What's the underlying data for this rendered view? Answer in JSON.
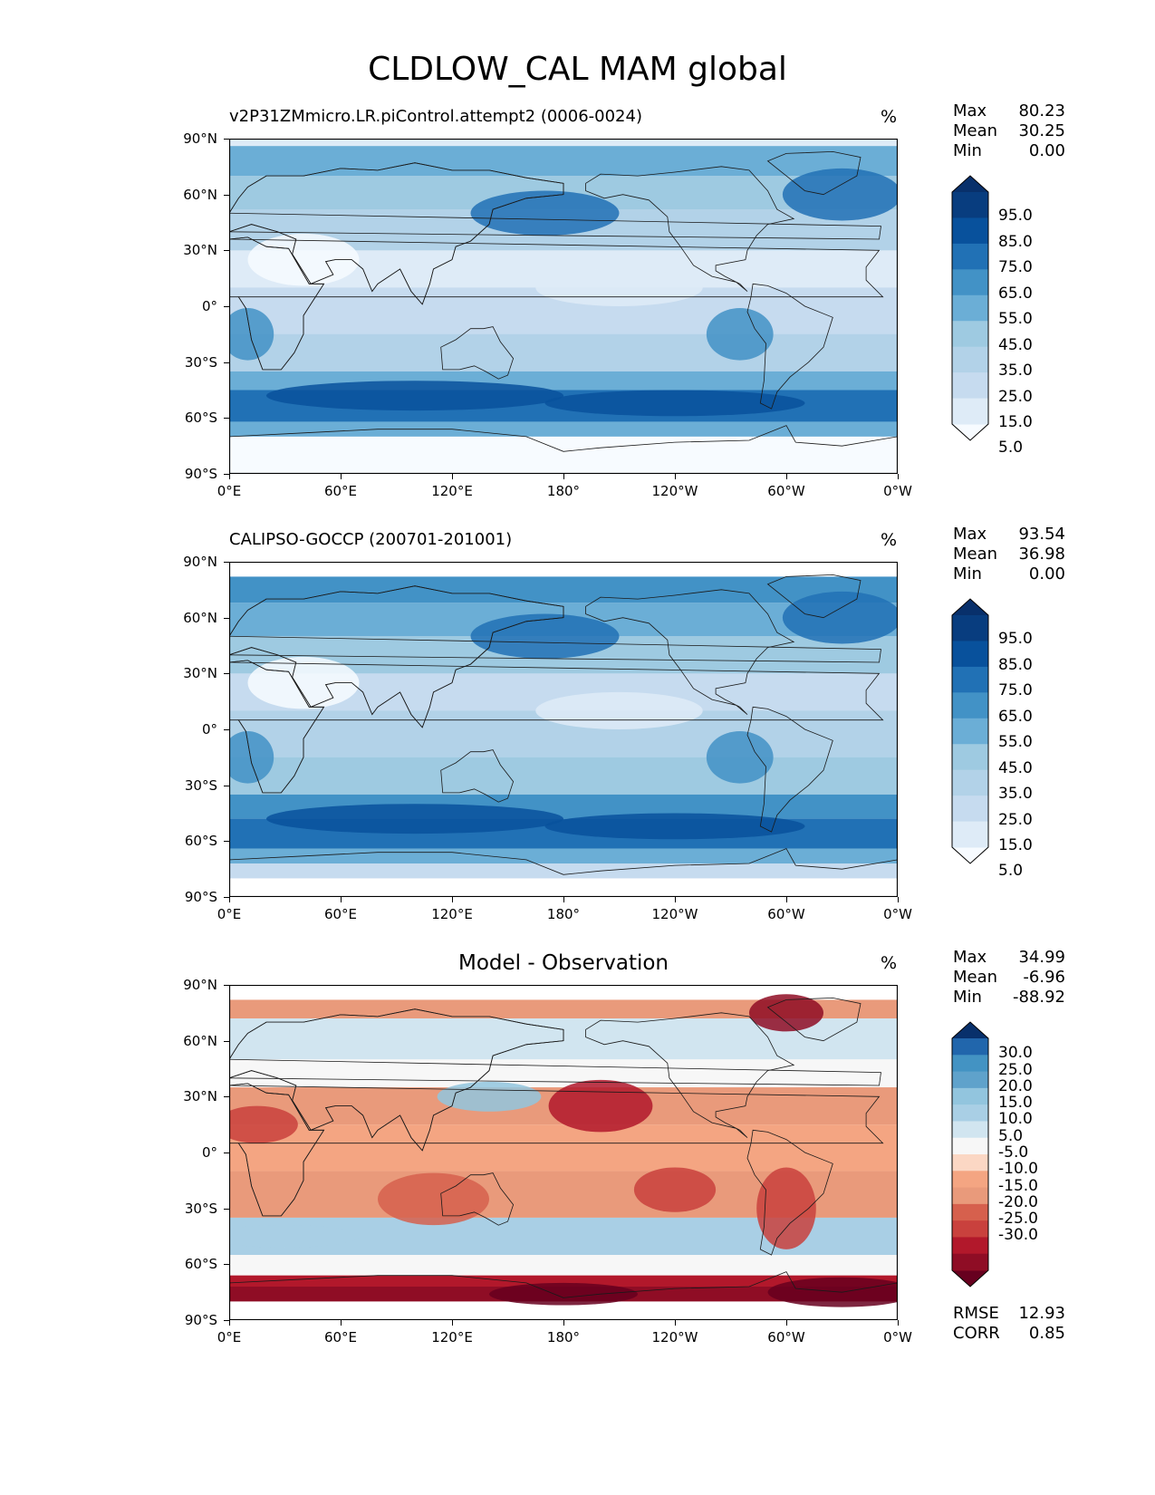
{
  "title": "CLDLOW_CAL MAM global",
  "lat_labels": [
    "90°N",
    "60°N",
    "30°N",
    "0°",
    "30°S",
    "60°S",
    "90°S"
  ],
  "lon_labels": [
    "0°E",
    "60°E",
    "120°E",
    "180°",
    "120°W",
    "60°W",
    "0°W"
  ],
  "stat_labels": {
    "max": "Max",
    "mean": "Mean",
    "min": "Min",
    "rmse": "RMSE",
    "corr": "CORR"
  },
  "panels": [
    {
      "title": "v2P31ZMmicro.LR.piControl.attempt2 (0006-0024)",
      "unit": "%",
      "stats": {
        "max": "80.23",
        "mean": "30.25",
        "min": "0.00"
      },
      "colorbar_labels": [
        "95.0",
        "85.0",
        "75.0",
        "65.0",
        "55.0",
        "45.0",
        "35.0",
        "25.0",
        "15.0",
        "5.0"
      ]
    },
    {
      "title": "CALIPSO-GOCCP (200701-201001)",
      "unit": "%",
      "stats": {
        "max": "93.54",
        "mean": "36.98",
        "min": "0.00"
      },
      "colorbar_labels": [
        "95.0",
        "85.0",
        "75.0",
        "65.0",
        "55.0",
        "45.0",
        "35.0",
        "25.0",
        "15.0",
        "5.0"
      ]
    },
    {
      "title": "Model - Observation",
      "unit": "%",
      "stats": {
        "max": "34.99",
        "mean": "-6.96",
        "min": "-88.92"
      },
      "colorbar_labels": [
        "30.0",
        "25.0",
        "20.0",
        "15.0",
        "10.0",
        "5.0",
        "-5.0",
        "-10.0",
        "-15.0",
        "-20.0",
        "-25.0",
        "-30.0"
      ],
      "rmse": "12.93",
      "corr": "0.85"
    }
  ],
  "colors": {
    "blues": [
      "#f7fbff",
      "#deebf7",
      "#c6dbef",
      "#b2d2e8",
      "#9ecae1",
      "#6baed6",
      "#4292c6",
      "#2171b5",
      "#08519c",
      "#083d7f",
      "#08306b"
    ],
    "diff": [
      "#67001f",
      "#8f0d25",
      "#b2182b",
      "#c9413d",
      "#d6604d",
      "#e99a7b",
      "#f4a582",
      "#fbd7c4",
      "#f7f7f7",
      "#d1e5f0",
      "#a9cfe5",
      "#92c5de",
      "#5fa2cb",
      "#4393c3",
      "#2166ac",
      "#08306b"
    ]
  }
}
